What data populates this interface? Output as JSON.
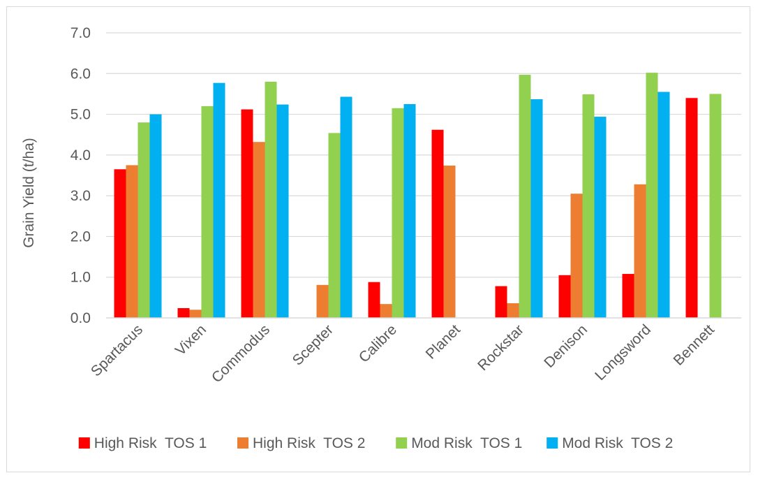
{
  "chart_data": {
    "type": "bar",
    "title": "",
    "xlabel": "",
    "ylabel": "Grain Yield (t/ha)",
    "ylim": [
      0,
      7
    ],
    "yticks": [
      "0.0",
      "1.0",
      "2.0",
      "3.0",
      "4.0",
      "5.0",
      "6.0",
      "7.0"
    ],
    "grid": true,
    "legend_position": "bottom",
    "categories": [
      "Spartacus",
      "Vixen",
      "Commodus",
      "Scepter",
      "Calibre",
      "Planet",
      "Rockstar",
      "Denison",
      "Longsword",
      "Bennett"
    ],
    "series": [
      {
        "name": "High Risk  TOS 1",
        "color": "#ff0000",
        "values": [
          3.65,
          0.24,
          5.12,
          null,
          0.88,
          4.62,
          0.78,
          1.05,
          1.08,
          5.4
        ]
      },
      {
        "name": "High Risk  TOS 2",
        "color": "#ed7d31",
        "values": [
          3.75,
          0.2,
          4.32,
          0.81,
          0.34,
          3.74,
          0.36,
          3.05,
          3.28,
          null
        ]
      },
      {
        "name": "Mod Risk  TOS 1",
        "color": "#92d050",
        "values": [
          4.8,
          5.2,
          5.8,
          4.54,
          5.15,
          null,
          5.97,
          5.49,
          6.02,
          5.5
        ]
      },
      {
        "name": "Mod Risk  TOS 2",
        "color": "#00b0f0",
        "values": [
          5.0,
          5.77,
          5.24,
          5.43,
          5.25,
          null,
          5.37,
          4.94,
          5.55,
          null
        ]
      }
    ]
  }
}
